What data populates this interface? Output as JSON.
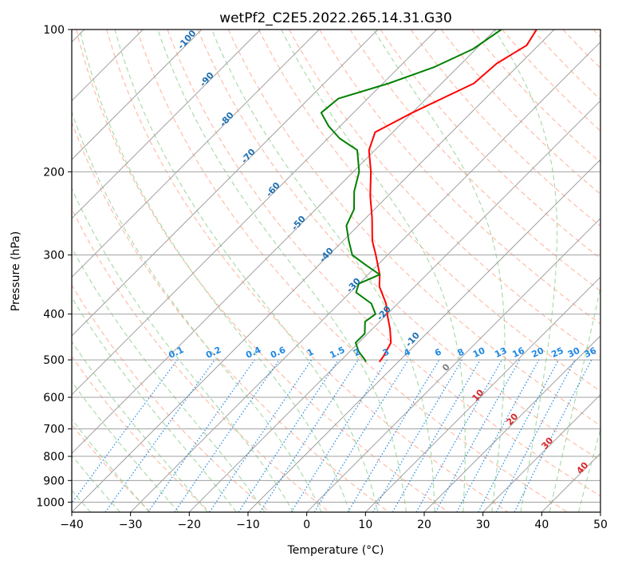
{
  "chart_data": {
    "type": "skew-t",
    "title": "wetPf2_C2E5.2022.265.14.31.G30",
    "xlabel": "Temperature (°C)",
    "ylabel": "Pressure (hPa)",
    "xlim": [
      -40,
      50
    ],
    "ylim_hpa": [
      1050,
      100
    ],
    "y_scale": "log",
    "grid": true,
    "x_ticks": [
      -40,
      -30,
      -20,
      -10,
      0,
      10,
      20,
      30,
      40,
      50
    ],
    "y_ticks": [
      100,
      200,
      300,
      400,
      500,
      600,
      700,
      800,
      900,
      1000
    ],
    "x_tick_labels": [
      "−40",
      "−30",
      "−20",
      "−10",
      "0",
      "10",
      "20",
      "30",
      "40",
      "50"
    ],
    "y_tick_labels": [
      "100",
      "200",
      "300",
      "400",
      "500",
      "600",
      "700",
      "800",
      "900",
      "1000"
    ],
    "series": [
      {
        "color": "#ff0000",
        "points": [
          [
            100,
            -43
          ],
          [
            108,
            -42
          ],
          [
            118,
            -44
          ],
          [
            130,
            -44.5
          ],
          [
            150,
            -50
          ],
          [
            165,
            -53
          ],
          [
            180,
            -51
          ],
          [
            200,
            -47
          ],
          [
            225,
            -43
          ],
          [
            250,
            -39
          ],
          [
            280,
            -35
          ],
          [
            300,
            -32
          ],
          [
            330,
            -28
          ],
          [
            350,
            -26
          ],
          [
            380,
            -22
          ],
          [
            400,
            -20
          ],
          [
            430,
            -17
          ],
          [
            460,
            -14.5
          ],
          [
            490,
            -13.5
          ],
          [
            505,
            -13.2
          ]
        ]
      },
      {
        "color": "#008000",
        "points": [
          [
            100,
            -49
          ],
          [
            110,
            -50.5
          ],
          [
            120,
            -54
          ],
          [
            130,
            -59
          ],
          [
            140,
            -65
          ],
          [
            150,
            -65.5
          ],
          [
            160,
            -62
          ],
          [
            170,
            -58
          ],
          [
            180,
            -53
          ],
          [
            200,
            -49
          ],
          [
            220,
            -46.5
          ],
          [
            240,
            -43.5
          ],
          [
            260,
            -42
          ],
          [
            280,
            -39
          ],
          [
            300,
            -36
          ],
          [
            315,
            -32
          ],
          [
            330,
            -28
          ],
          [
            345,
            -30
          ],
          [
            360,
            -29
          ],
          [
            380,
            -24.5
          ],
          [
            400,
            -22
          ],
          [
            415,
            -22.5
          ],
          [
            440,
            -20.5
          ],
          [
            460,
            -20.5
          ],
          [
            480,
            -18.5
          ],
          [
            500,
            -16
          ],
          [
            505,
            -15.5
          ]
        ]
      }
    ],
    "dry_adiabat_labels": [
      "-100",
      "-90",
      "-80",
      "-70",
      "-60",
      "-50",
      "-40",
      "-30",
      "-20",
      "-10",
      "0",
      "10",
      "20",
      "30",
      "40"
    ],
    "mixing_ratio_labels": [
      "0.1",
      "0.2",
      "0.4",
      "0.6",
      "1",
      "1.5",
      "2",
      "3",
      "4",
      "6",
      "8",
      "10",
      "13",
      "16",
      "20",
      "25",
      "30",
      "36"
    ],
    "colors": {
      "temperature": "#ff0000",
      "dewpoint": "#008000",
      "dry_adiabat": "#ff9f80",
      "moist_adiabat": "#8fce8f",
      "mixing_ratio": "#1e88e5",
      "isotherm": "#a0a0a0",
      "isobar": "#a0a0a0",
      "lcl_label": "#808080",
      "theta_label_cold": "#1f6fb2",
      "theta_label_warm": "#d62728"
    }
  }
}
